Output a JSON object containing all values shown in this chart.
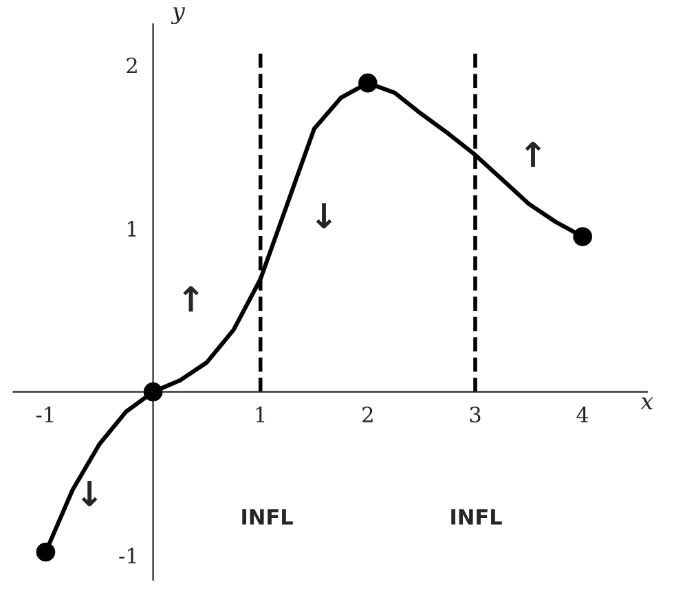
{
  "chart_data": {
    "type": "line",
    "xlabel": "x",
    "ylabel": "y",
    "x": [
      -1,
      -0.75,
      -0.5,
      -0.25,
      0,
      0.25,
      0.5,
      0.75,
      1,
      1.25,
      1.5,
      1.75,
      2,
      2.25,
      2.5,
      2.75,
      3,
      3.25,
      3.5,
      3.75,
      4
    ],
    "series": [
      {
        "color": "#000000",
        "values": [
          -0.98,
          -0.6,
          -0.32,
          -0.12,
          0,
          0.07,
          0.18,
          0.38,
          0.69,
          1.15,
          1.61,
          1.8,
          1.89,
          1.83,
          1.7,
          1.58,
          1.45,
          1.3,
          1.15,
          1.04,
          0.95
        ]
      },
      {
        "type": "scatter",
        "color": "#000000",
        "x": [
          -1,
          0,
          2,
          4
        ],
        "values": [
          -0.98,
          0,
          1.89,
          0.95
        ]
      }
    ],
    "xlim": [
      -1.3,
      4.6
    ],
    "ylim": [
      -1.15,
      2.25
    ],
    "xticks": [
      -1,
      1,
      2,
      3,
      4
    ],
    "yticks": [
      -1,
      1,
      2
    ],
    "ref_lines": [
      {
        "axis": "x",
        "value": 1,
        "line_style": "dashed",
        "color": "#000000"
      },
      {
        "axis": "x",
        "value": 3,
        "line_style": "dashed",
        "color": "#000000"
      }
    ],
    "annotations": [
      "INFL",
      "INFL",
      "↓",
      "↑",
      "↓",
      "↑"
    ],
    "grid": false,
    "legend": false
  }
}
